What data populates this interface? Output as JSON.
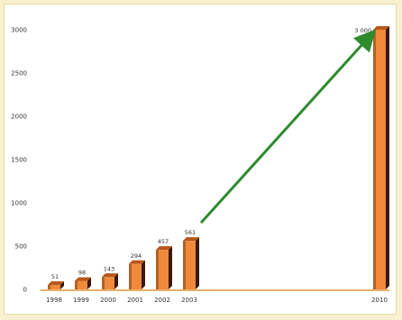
{
  "chart_data": {
    "type": "bar",
    "title": "",
    "xlabel": "",
    "ylabel": "",
    "categories": [
      "1998",
      "1999",
      "2000",
      "2001",
      "2002",
      "2003",
      "2010"
    ],
    "values": [
      51,
      98,
      143,
      294,
      457,
      561,
      3000
    ],
    "value_labels": [
      "51",
      "98",
      "143",
      "294",
      "457",
      "561",
      "3 000"
    ],
    "ylim": [
      0,
      3000
    ],
    "yticks": [
      0,
      500,
      1000,
      1500,
      2000,
      2500,
      3000
    ],
    "grid": false,
    "legend": "none",
    "trend_arrow": {
      "from": "2003",
      "to": "2010"
    }
  },
  "colors": {
    "bar_front": "#f08a3a",
    "bar_top": "#b8561a",
    "bar_side": "#3a1a08",
    "arrow": "#2e8b2e",
    "axis": "#e0963c",
    "background": "#f7f1cf"
  }
}
